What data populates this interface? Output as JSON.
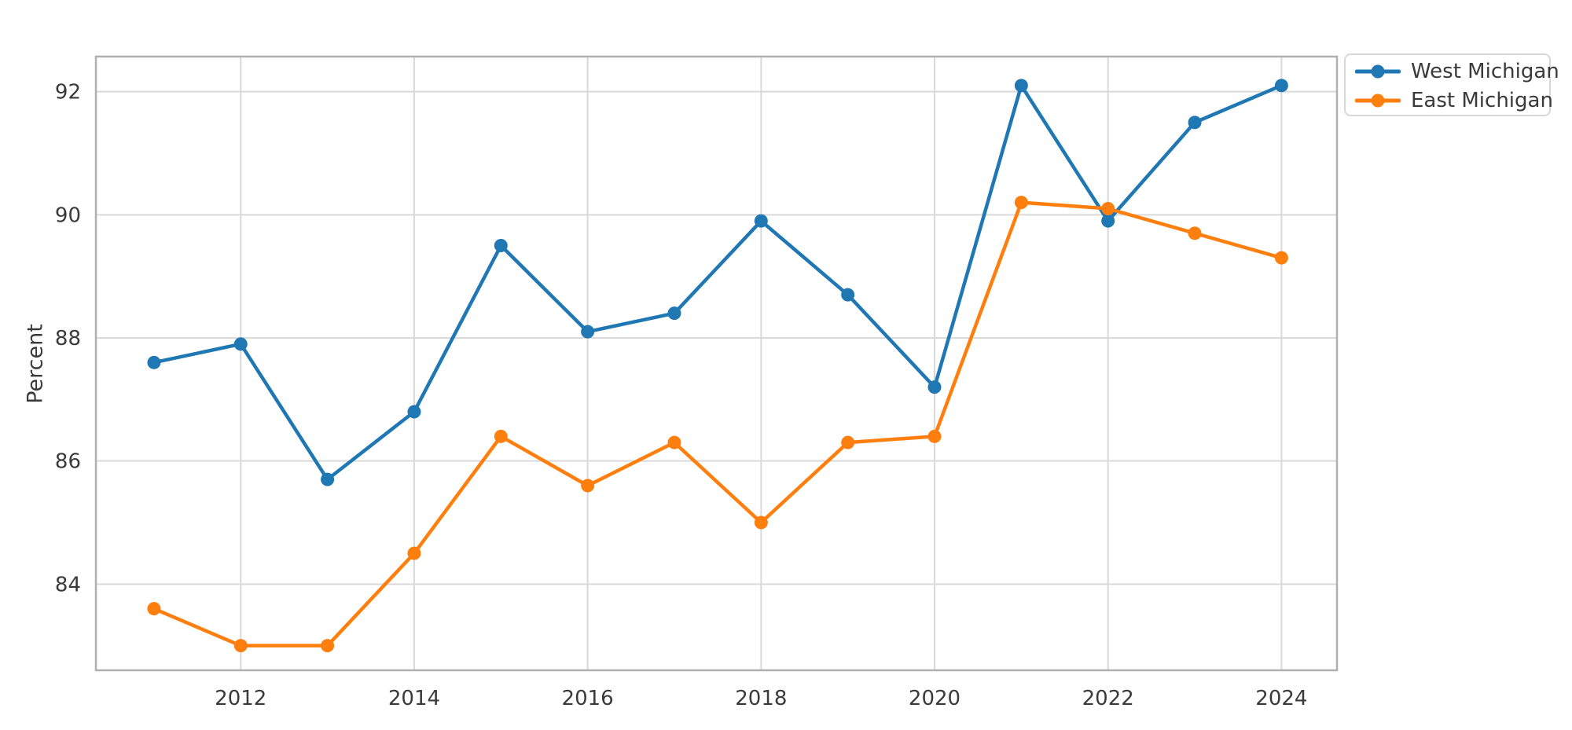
{
  "figure": {
    "background": "#ffffff",
    "ylabel": "Percent"
  },
  "chart_data": {
    "type": "line",
    "title": "",
    "xlabel": "",
    "ylabel": "Percent",
    "x": [
      2011,
      2012,
      2013,
      2014,
      2015,
      2016,
      2017,
      2018,
      2019,
      2020,
      2021,
      2022,
      2023,
      2024
    ],
    "series": [
      {
        "name": "West Michigan",
        "color": "#1f77b4",
        "values": [
          87.6,
          87.9,
          85.7,
          86.8,
          89.5,
          88.1,
          88.4,
          89.9,
          88.7,
          87.2,
          92.1,
          89.9,
          91.5,
          92.1
        ]
      },
      {
        "name": "East Michigan",
        "color": "#ff7f0e",
        "values": [
          83.6,
          83.0,
          83.0,
          84.5,
          86.4,
          85.6,
          86.3,
          85.0,
          86.3,
          86.4,
          90.2,
          90.1,
          89.7,
          89.3
        ]
      }
    ],
    "xticks": [
      2012,
      2014,
      2016,
      2018,
      2020,
      2022,
      2024
    ],
    "yticks": [
      84,
      86,
      88,
      90,
      92
    ],
    "xlim": [
      2010.33,
      2024.64
    ],
    "ylim": [
      82.6,
      92.57
    ],
    "grid": true,
    "grid_color": "#d9d9d9",
    "spine_color": "#b0b0b0",
    "text_color": "#3a3a3a",
    "legend_position": "upper right outside",
    "marker": "circle",
    "marker_radius": 8.5,
    "line_width": 4.5
  }
}
